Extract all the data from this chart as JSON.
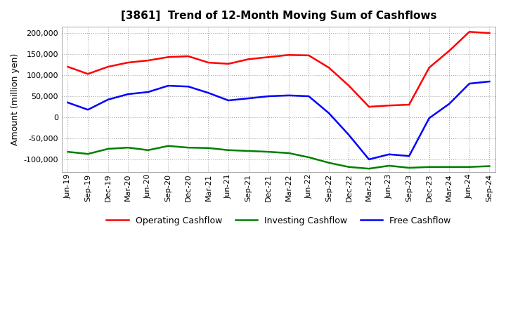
{
  "title": "[3861]  Trend of 12-Month Moving Sum of Cashflows",
  "ylabel": "Amount (million yen)",
  "ylim": [
    -130000,
    215000
  ],
  "yticks": [
    -100000,
    -50000,
    0,
    50000,
    100000,
    150000,
    200000
  ],
  "background_color": "#ffffff",
  "grid_color": "#aaaaaa",
  "dates": [
    "Jun-19",
    "Sep-19",
    "Dec-19",
    "Mar-20",
    "Jun-20",
    "Sep-20",
    "Dec-20",
    "Mar-21",
    "Jun-21",
    "Sep-21",
    "Dec-21",
    "Mar-22",
    "Jun-22",
    "Sep-22",
    "Dec-22",
    "Mar-23",
    "Jun-23",
    "Sep-23",
    "Dec-23",
    "Mar-24",
    "Jun-24",
    "Sep-24"
  ],
  "operating": [
    120000,
    103000,
    120000,
    130000,
    135000,
    143000,
    145000,
    130000,
    127000,
    138000,
    143000,
    148000,
    147000,
    118000,
    75000,
    25000,
    28000,
    30000,
    118000,
    158000,
    203000,
    200000
  ],
  "investing": [
    -82000,
    -87000,
    -75000,
    -72000,
    -78000,
    -68000,
    -72000,
    -73000,
    -78000,
    -80000,
    -82000,
    -85000,
    -95000,
    -108000,
    -118000,
    -122000,
    -115000,
    -120000,
    -118000,
    -118000,
    -118000,
    -116000
  ],
  "free": [
    35000,
    18000,
    42000,
    55000,
    60000,
    75000,
    73000,
    58000,
    40000,
    45000,
    50000,
    52000,
    50000,
    10000,
    -42000,
    -100000,
    -88000,
    -92000,
    -2000,
    32000,
    80000,
    85000
  ],
  "line_colors": {
    "operating": "#ff0000",
    "investing": "#008000",
    "free": "#0000ff"
  },
  "legend_labels": [
    "Operating Cashflow",
    "Investing Cashflow",
    "Free Cashflow"
  ]
}
